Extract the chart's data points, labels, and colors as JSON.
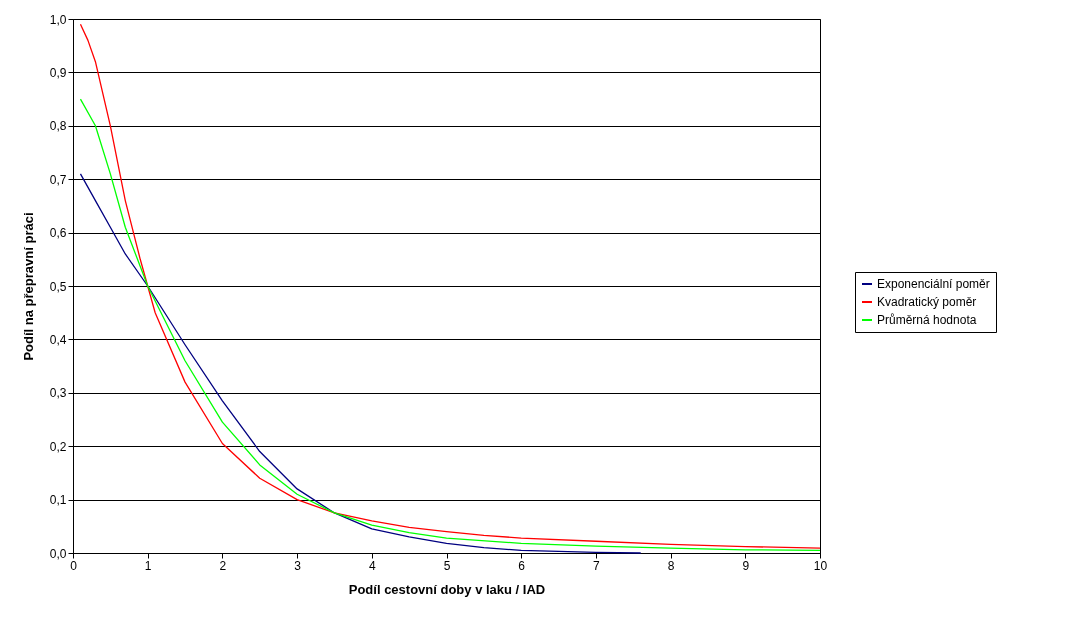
{
  "chart_data": {
    "type": "line",
    "xlabel": "Podíl cestovní doby v laku / IAD",
    "ylabel": "Podíl na přepravní práci",
    "xlim": [
      0,
      10
    ],
    "xticks": [
      0,
      1,
      2,
      3,
      4,
      5,
      6,
      7,
      8,
      9,
      10
    ],
    "ylim": [
      0,
      1
    ],
    "yticks": [
      {
        "value": 0,
        "label": "0,0"
      },
      {
        "value": 0.1,
        "label": "0,1"
      },
      {
        "value": 0.2,
        "label": "0,2"
      },
      {
        "value": 0.3,
        "label": "0,3"
      },
      {
        "value": 0.4,
        "label": "0,4"
      },
      {
        "value": 0.5,
        "label": "0,5"
      },
      {
        "value": 0.6,
        "label": "0,6"
      },
      {
        "value": 0.7,
        "label": "0,7"
      },
      {
        "value": 0.8,
        "label": "0,8"
      },
      {
        "value": 0.9,
        "label": "0,9"
      },
      {
        "value": 1,
        "label": "1,0"
      }
    ],
    "grid": "y",
    "legend": "right",
    "series": [
      {
        "name": "Exponenciální poměr",
        "color": "#000080",
        "x": [
          0.1,
          0.3,
          0.5,
          0.7,
          1,
          1.5,
          2,
          2.5,
          3,
          3.5,
          4,
          4.5,
          5,
          5.5,
          6,
          6.5,
          7,
          7.6
        ],
        "values": [
          0.71,
          0.66,
          0.61,
          0.56,
          0.5,
          0.39,
          0.285,
          0.19,
          0.12,
          0.075,
          0.045,
          0.03,
          0.018,
          0.01,
          0.005,
          0.003,
          0.001,
          0.0
        ]
      },
      {
        "name": "Kvadratický poměr",
        "color": "#ff0000",
        "x": [
          0.1,
          0.2,
          0.3,
          0.5,
          0.7,
          0.9,
          1,
          1.1,
          1.5,
          2,
          2.5,
          3,
          3.5,
          4,
          4.5,
          5,
          5.5,
          6,
          7,
          8,
          9,
          10
        ],
        "values": [
          0.99,
          0.96,
          0.92,
          0.8,
          0.66,
          0.55,
          0.5,
          0.45,
          0.32,
          0.205,
          0.14,
          0.1,
          0.075,
          0.06,
          0.048,
          0.04,
          0.033,
          0.028,
          0.022,
          0.016,
          0.012,
          0.009
        ]
      },
      {
        "name": "Průměrná hodnota",
        "color": "#00ff00",
        "x": [
          0.1,
          0.3,
          0.5,
          0.7,
          1,
          1.5,
          2,
          2.5,
          3,
          3.5,
          4,
          4.5,
          5,
          6,
          7,
          8,
          9,
          10
        ],
        "values": [
          0.85,
          0.8,
          0.71,
          0.61,
          0.5,
          0.36,
          0.245,
          0.165,
          0.11,
          0.075,
          0.052,
          0.038,
          0.028,
          0.018,
          0.013,
          0.009,
          0.006,
          0.005
        ]
      }
    ]
  }
}
